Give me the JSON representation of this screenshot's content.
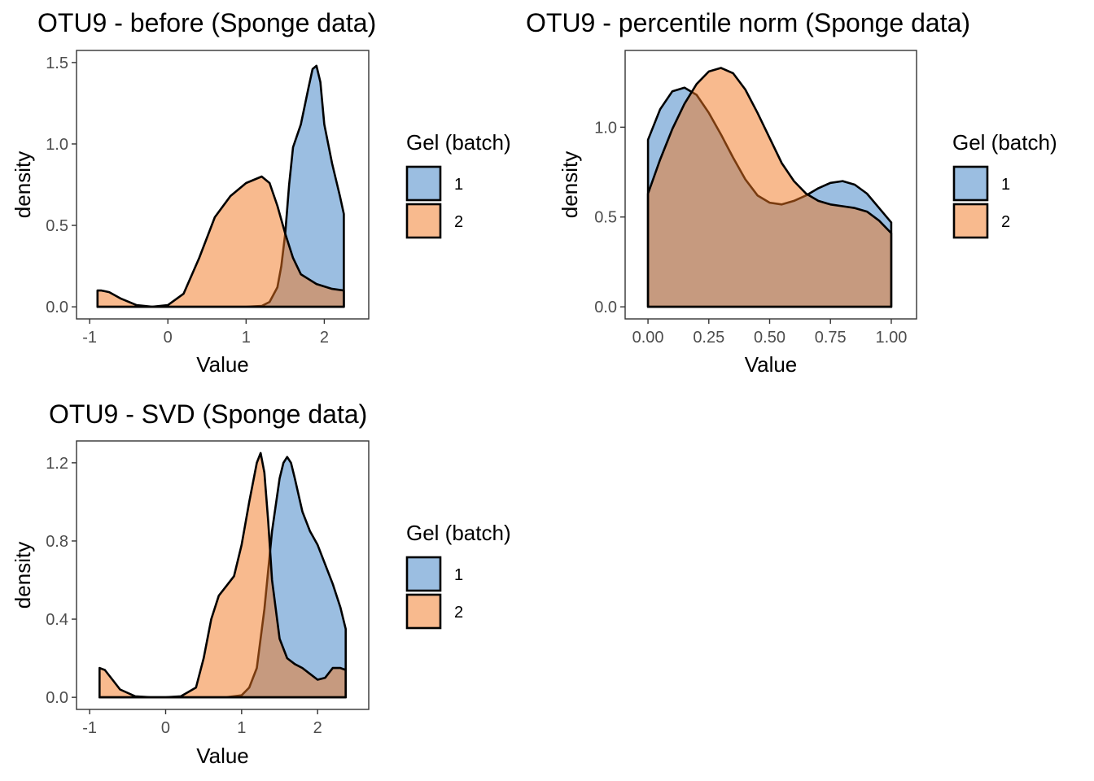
{
  "colors": {
    "batch_1": "#377EC3",
    "batch_2": "#F2761E"
  },
  "chart_data": [
    {
      "type": "area",
      "title": "OTU9 - before (Sponge data)",
      "xlabel": "Value",
      "ylabel": "density",
      "xlim": [
        -1,
        2.4
      ],
      "ylim": [
        0,
        1.5
      ],
      "xticks": [
        -1,
        0,
        1,
        2
      ],
      "yticks": [
        0.0,
        0.5,
        1.0,
        1.5
      ],
      "xtick_labels": [
        "-1",
        "0",
        "1",
        "2"
      ],
      "ytick_labels": [
        "0.0",
        "0.5",
        "1.0",
        "1.5"
      ],
      "grid": false,
      "legend": {
        "title": "Gel (batch)",
        "position": "right",
        "labels": [
          "1",
          "2"
        ]
      },
      "series": [
        {
          "name": "1",
          "color": "#377EC3",
          "x": [
            -0.9,
            1.0,
            1.2,
            1.3,
            1.4,
            1.45,
            1.5,
            1.55,
            1.6,
            1.7,
            1.8,
            1.85,
            1.9,
            1.95,
            2.0,
            2.1,
            2.2,
            2.25
          ],
          "y": [
            0.0,
            0.0,
            0.005,
            0.03,
            0.12,
            0.25,
            0.45,
            0.75,
            0.98,
            1.12,
            1.35,
            1.46,
            1.48,
            1.38,
            1.12,
            0.88,
            0.68,
            0.57
          ]
        },
        {
          "name": "2",
          "color": "#F2761E",
          "x": [
            -0.9,
            -0.85,
            -0.75,
            -0.6,
            -0.4,
            -0.2,
            0.0,
            0.2,
            0.4,
            0.6,
            0.8,
            1.0,
            1.2,
            1.3,
            1.4,
            1.5,
            1.6,
            1.7,
            1.9,
            2.1,
            2.25
          ],
          "y": [
            0.1,
            0.1,
            0.09,
            0.05,
            0.01,
            0.0,
            0.01,
            0.08,
            0.3,
            0.55,
            0.68,
            0.76,
            0.8,
            0.76,
            0.62,
            0.45,
            0.3,
            0.2,
            0.14,
            0.11,
            0.1
          ]
        }
      ]
    },
    {
      "type": "area",
      "title": "OTU9 - percentile norm (Sponge data)",
      "xlabel": "Value",
      "ylabel": "density",
      "xlim": [
        -0.04,
        1.05
      ],
      "ylim": [
        0,
        1.36
      ],
      "xticks": [
        0.0,
        0.25,
        0.5,
        0.75,
        1.0
      ],
      "yticks": [
        0.0,
        0.5,
        1.0
      ],
      "xtick_labels": [
        "0.00",
        "0.25",
        "0.50",
        "0.75",
        "1.00"
      ],
      "ytick_labels": [
        "0.0",
        "0.5",
        "1.0"
      ],
      "grid": false,
      "legend": {
        "title": "Gel (batch)",
        "position": "right",
        "labels": [
          "1",
          "2"
        ]
      },
      "series": [
        {
          "name": "1",
          "color": "#377EC3",
          "x": [
            0.0,
            0.05,
            0.1,
            0.15,
            0.2,
            0.25,
            0.3,
            0.35,
            0.4,
            0.45,
            0.5,
            0.55,
            0.6,
            0.65,
            0.7,
            0.75,
            0.8,
            0.85,
            0.9,
            0.95,
            1.0
          ],
          "y": [
            0.93,
            1.1,
            1.2,
            1.22,
            1.18,
            1.08,
            0.96,
            0.83,
            0.71,
            0.62,
            0.58,
            0.57,
            0.59,
            0.62,
            0.66,
            0.69,
            0.7,
            0.68,
            0.63,
            0.55,
            0.47
          ]
        },
        {
          "name": "2",
          "color": "#F2761E",
          "x": [
            0.0,
            0.05,
            0.1,
            0.15,
            0.2,
            0.25,
            0.3,
            0.35,
            0.4,
            0.45,
            0.5,
            0.55,
            0.6,
            0.65,
            0.7,
            0.75,
            0.8,
            0.85,
            0.9,
            0.95,
            1.0
          ],
          "y": [
            0.63,
            0.82,
            0.99,
            1.13,
            1.24,
            1.31,
            1.33,
            1.3,
            1.21,
            1.08,
            0.94,
            0.8,
            0.7,
            0.63,
            0.59,
            0.57,
            0.56,
            0.55,
            0.53,
            0.48,
            0.41
          ]
        }
      ]
    },
    {
      "type": "area",
      "title": "OTU9 - SVD (Sponge data)",
      "xlabel": "Value",
      "ylabel": "density",
      "xlim": [
        -1,
        2.5
      ],
      "ylim": [
        0,
        1.25
      ],
      "xticks": [
        -1,
        0,
        1,
        2
      ],
      "yticks": [
        0.0,
        0.4,
        0.8,
        1.2
      ],
      "xtick_labels": [
        "-1",
        "0",
        "1",
        "2"
      ],
      "ytick_labels": [
        "0.0",
        "0.4",
        "0.8",
        "1.2"
      ],
      "grid": false,
      "legend": {
        "title": "Gel (batch)",
        "position": "right",
        "labels": [
          "1",
          "2"
        ]
      },
      "series": [
        {
          "name": "1",
          "color": "#377EC3",
          "x": [
            -0.87,
            0.8,
            1.0,
            1.1,
            1.2,
            1.3,
            1.4,
            1.5,
            1.55,
            1.6,
            1.65,
            1.7,
            1.8,
            1.9,
            2.0,
            2.1,
            2.2,
            2.3,
            2.37
          ],
          "y": [
            0.0,
            0.0,
            0.01,
            0.05,
            0.15,
            0.45,
            0.85,
            1.12,
            1.2,
            1.23,
            1.2,
            1.12,
            0.95,
            0.85,
            0.78,
            0.68,
            0.58,
            0.46,
            0.35
          ]
        },
        {
          "name": "2",
          "color": "#F2761E",
          "x": [
            -0.87,
            -0.8,
            -0.7,
            -0.6,
            -0.4,
            -0.2,
            0.0,
            0.2,
            0.4,
            0.5,
            0.6,
            0.7,
            0.8,
            0.9,
            1.0,
            1.1,
            1.2,
            1.25,
            1.3,
            1.35,
            1.4,
            1.5,
            1.6,
            1.7,
            1.8,
            1.9,
            2.0,
            2.1,
            2.2,
            2.3,
            2.37
          ],
          "y": [
            0.15,
            0.14,
            0.09,
            0.04,
            0.005,
            0.0,
            0.0,
            0.005,
            0.05,
            0.2,
            0.4,
            0.52,
            0.57,
            0.62,
            0.78,
            1.0,
            1.2,
            1.25,
            1.15,
            0.9,
            0.6,
            0.3,
            0.2,
            0.17,
            0.15,
            0.12,
            0.09,
            0.1,
            0.15,
            0.15,
            0.14
          ]
        }
      ]
    }
  ]
}
